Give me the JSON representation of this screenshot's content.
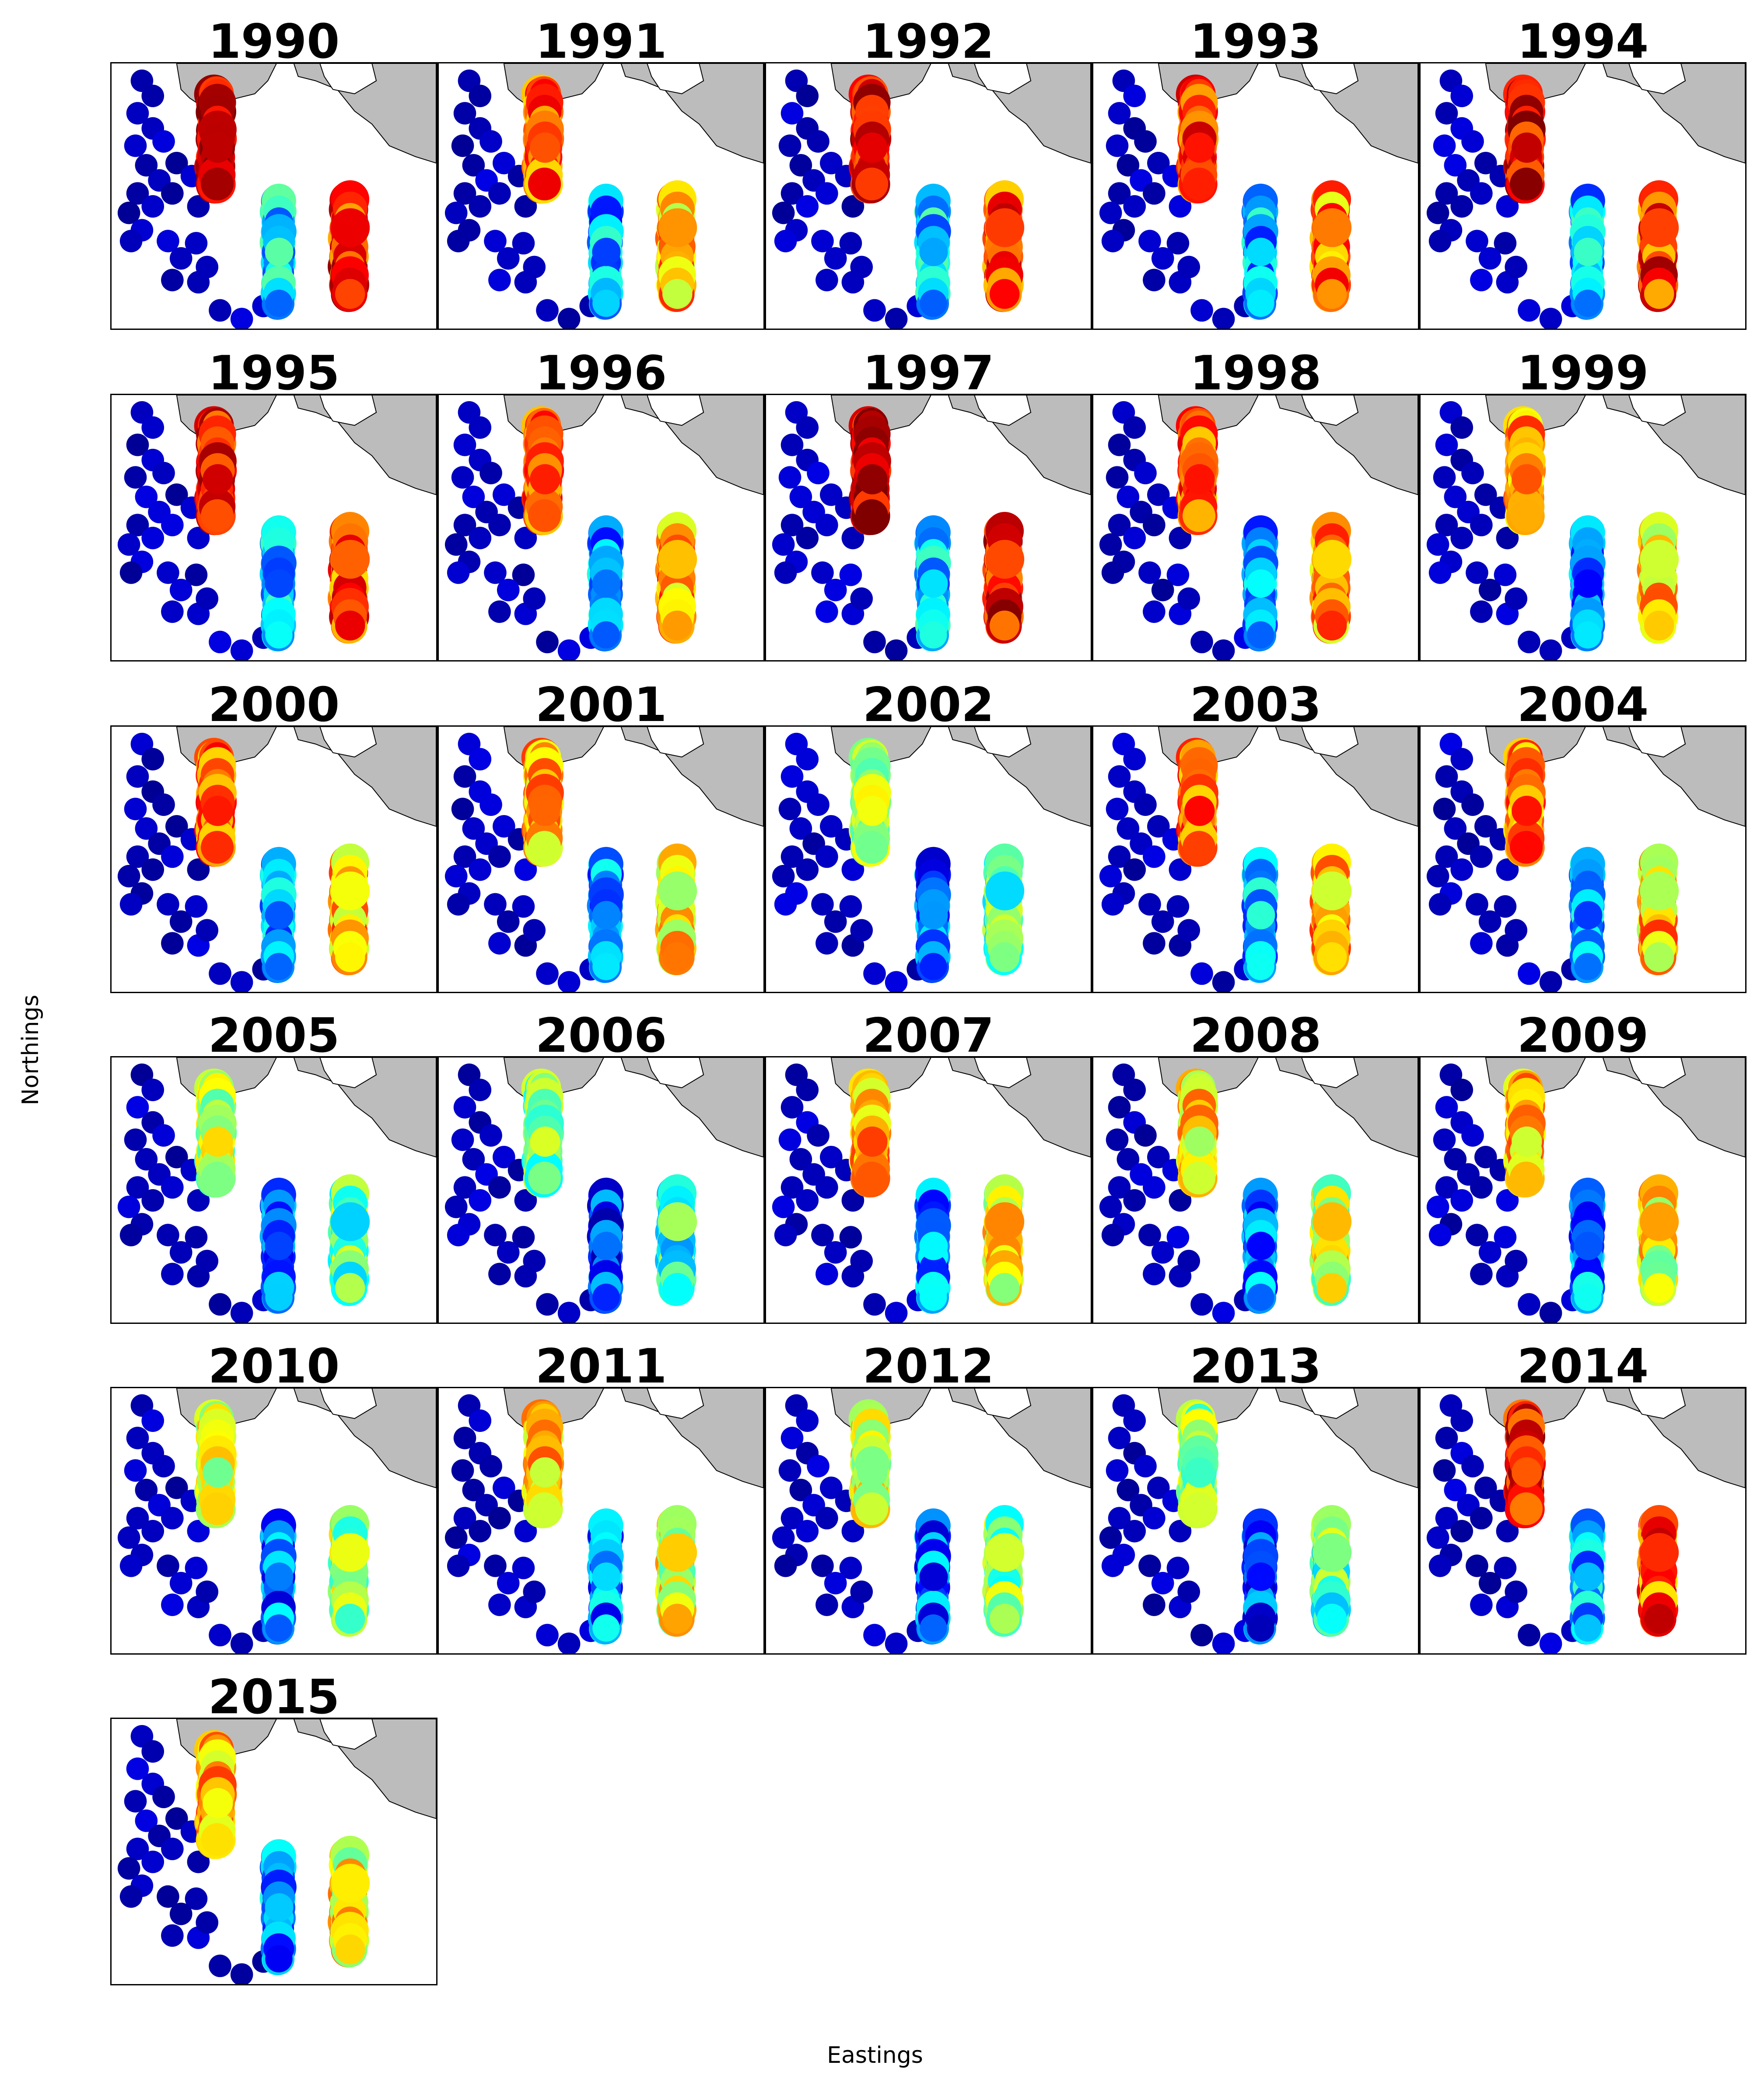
{
  "chart_data": {
    "type": "scatter",
    "title": "",
    "xlabel": "Eastings",
    "ylabel": "Northings",
    "colormap": "jet",
    "colors": {
      "land": "#bcbcbc",
      "coastline": "#000000",
      "background": "#ffffff"
    },
    "panels": [
      {
        "year": "1990",
        "level": 0.95
      },
      {
        "year": "1991",
        "level": 0.8
      },
      {
        "year": "1992",
        "level": 0.9
      },
      {
        "year": "1993",
        "level": 0.85
      },
      {
        "year": "1994",
        "level": 0.92
      },
      {
        "year": "1995",
        "level": 0.9
      },
      {
        "year": "1996",
        "level": 0.82
      },
      {
        "year": "1997",
        "level": 0.95
      },
      {
        "year": "1998",
        "level": 0.82
      },
      {
        "year": "1999",
        "level": 0.75
      },
      {
        "year": "2000",
        "level": 0.8
      },
      {
        "year": "2001",
        "level": 0.72
      },
      {
        "year": "2002",
        "level": 0.55
      },
      {
        "year": "2003",
        "level": 0.8
      },
      {
        "year": "2004",
        "level": 0.78
      },
      {
        "year": "2005",
        "level": 0.58
      },
      {
        "year": "2006",
        "level": 0.5
      },
      {
        "year": "2007",
        "level": 0.72
      },
      {
        "year": "2008",
        "level": 0.68
      },
      {
        "year": "2009",
        "level": 0.72
      },
      {
        "year": "2010",
        "level": 0.62
      },
      {
        "year": "2011",
        "level": 0.7
      },
      {
        "year": "2012",
        "level": 0.62
      },
      {
        "year": "2013",
        "level": 0.55
      },
      {
        "year": "2014",
        "level": 0.9
      },
      {
        "year": "2015",
        "level": 0.72
      }
    ]
  }
}
